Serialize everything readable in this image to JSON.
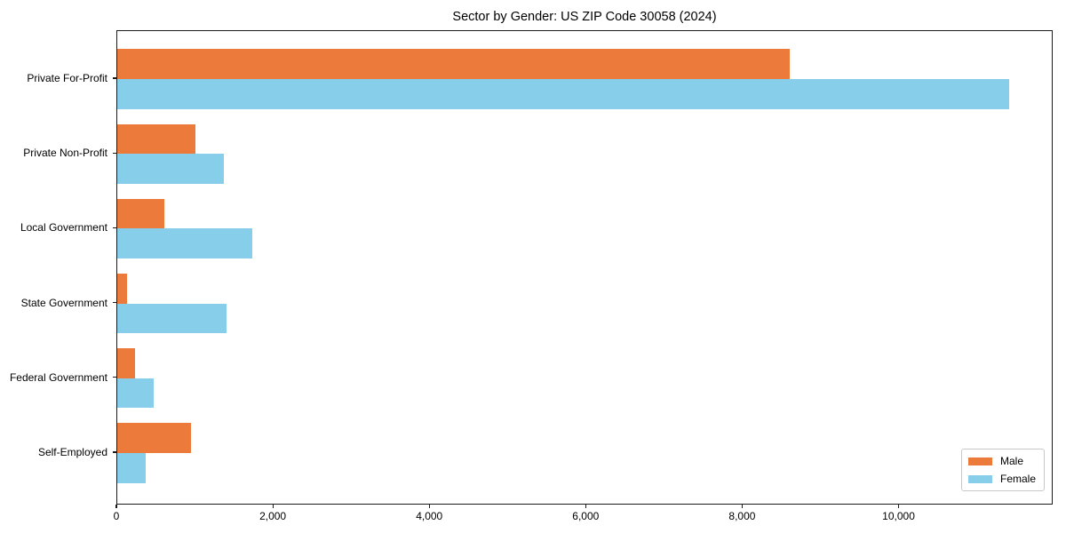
{
  "title": "Sector by Gender: US ZIP Code 30058 (2024)",
  "chart_data": {
    "type": "bar",
    "orientation": "horizontal",
    "title": "Sector by Gender: US ZIP Code 30058 (2024)",
    "categories": [
      "Private For-Profit",
      "Private Non-Profit",
      "Local Government",
      "State Government",
      "Federal Government",
      "Self-Employed"
    ],
    "series": [
      {
        "name": "Male",
        "color": "#EC7A3B",
        "values": [
          8600,
          1000,
          600,
          130,
          230,
          940
        ]
      },
      {
        "name": "Female",
        "color": "#87CEEB",
        "values": [
          11400,
          1360,
          1730,
          1400,
          470,
          360
        ]
      }
    ],
    "xlabel": "",
    "ylabel": "",
    "xlim": [
      0,
      11970
    ],
    "xticks": [
      0,
      2000,
      4000,
      6000,
      8000,
      10000
    ],
    "xtick_labels": [
      "0",
      "2,000",
      "4,000",
      "6,000",
      "8,000",
      "10,000"
    ],
    "grid": false,
    "legend": {
      "position": "lower right",
      "entries": [
        "Male",
        "Female"
      ]
    }
  },
  "colors": {
    "background": "#ffffff",
    "frame": "#1a1a1a",
    "text": "#000000",
    "legend_border": "#c8c8c8",
    "male": "#EC7A3B",
    "female": "#87CEEB"
  }
}
